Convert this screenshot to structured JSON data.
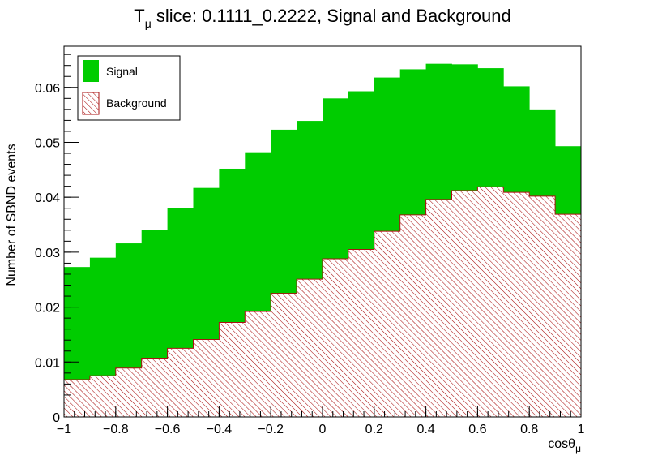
{
  "chart_data": {
    "type": "bar",
    "title_main": "T",
    "title_sub": "μ",
    "title_rest": " slice: 0.1111_0.2222, Signal and Background",
    "xlabel_main": "cosθ",
    "xlabel_sub": "μ",
    "ylabel": "Number of SBND events",
    "xlim": [
      -1,
      1
    ],
    "ylim": [
      0,
      0.0675
    ],
    "x_ticks": [
      "−1",
      "−0.8",
      "−0.6",
      "−0.4",
      "−0.2",
      "0",
      "0.2",
      "0.4",
      "0.6",
      "0.8",
      "1"
    ],
    "x_tick_values": [
      -1,
      -0.8,
      -0.6,
      -0.4,
      -0.2,
      0,
      0.2,
      0.4,
      0.6,
      0.8,
      1
    ],
    "y_ticks": [
      "0",
      "0.01",
      "0.02",
      "0.03",
      "0.04",
      "0.05",
      "0.06"
    ],
    "y_tick_values": [
      0,
      0.01,
      0.02,
      0.03,
      0.04,
      0.05,
      0.06
    ],
    "bin_edges": [
      -1,
      -0.9,
      -0.8,
      -0.7,
      -0.6,
      -0.5,
      -0.4,
      -0.3,
      -0.2,
      -0.1,
      0,
      0.1,
      0.2,
      0.3,
      0.4,
      0.5,
      0.6,
      0.7,
      0.8,
      0.9,
      1
    ],
    "stacked": true,
    "series": [
      {
        "name": "Background",
        "color": "#aa1111",
        "fill": "hatched",
        "values": [
          0.0068,
          0.0075,
          0.0089,
          0.0107,
          0.0125,
          0.0141,
          0.0172,
          0.0192,
          0.0225,
          0.0251,
          0.0288,
          0.0305,
          0.0338,
          0.0368,
          0.0396,
          0.0412,
          0.0419,
          0.0409,
          0.0402,
          0.0369
        ]
      },
      {
        "name": "Signal",
        "color": "#00cc00",
        "fill": "solid",
        "stacked_totals": [
          0.0273,
          0.029,
          0.0316,
          0.0341,
          0.0381,
          0.0417,
          0.0452,
          0.0482,
          0.0523,
          0.0539,
          0.058,
          0.0593,
          0.0618,
          0.0633,
          0.0643,
          0.0642,
          0.0635,
          0.0602,
          0.056,
          0.0493
        ]
      }
    ],
    "legend": {
      "position": "top-left",
      "entries": [
        {
          "label": "Signal",
          "fill": "solid",
          "color": "#00cc00"
        },
        {
          "label": "Background",
          "fill": "hatched",
          "color": "#aa1111"
        }
      ]
    }
  }
}
